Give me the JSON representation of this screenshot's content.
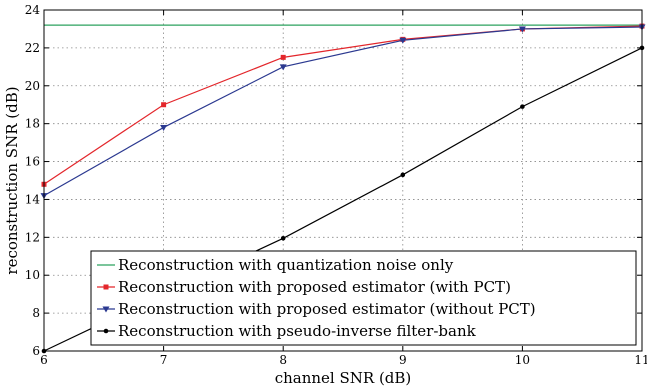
{
  "chart_data": {
    "type": "line",
    "title": "",
    "xlabel": "channel SNR (dB)",
    "ylabel": "reconstruction SNR (dB)",
    "xlim": [
      6,
      11
    ],
    "ylim": [
      6,
      24
    ],
    "xticks": [
      6,
      7,
      8,
      9,
      10,
      11
    ],
    "yticks": [
      6,
      8,
      10,
      12,
      14,
      16,
      18,
      20,
      22,
      24
    ],
    "grid": true,
    "legend_position": "bottom-right",
    "x": [
      6,
      7,
      8,
      9,
      10,
      11
    ],
    "series": [
      {
        "name": "Reconstruction with quantization noise only",
        "color": "#2ca25f",
        "marker": "none",
        "values": [
          23.2,
          23.2,
          23.2,
          23.2,
          23.2,
          23.2
        ]
      },
      {
        "name": "Reconstruction with proposed estimator (with PCT)",
        "color": "#e3262b",
        "marker": "square",
        "values": [
          14.8,
          19.0,
          21.5,
          22.45,
          23.0,
          23.15
        ]
      },
      {
        "name": "Reconstruction with proposed estimator (without PCT)",
        "color": "#2b3990",
        "marker": "triangle-down",
        "values": [
          14.2,
          17.8,
          21.0,
          22.4,
          23.0,
          23.1
        ]
      },
      {
        "name": "Reconstruction with pseudo-inverse filter-bank",
        "color": "#000000",
        "marker": "dot",
        "values": [
          6.0,
          9.0,
          11.95,
          15.3,
          18.9,
          22.0
        ]
      }
    ]
  }
}
